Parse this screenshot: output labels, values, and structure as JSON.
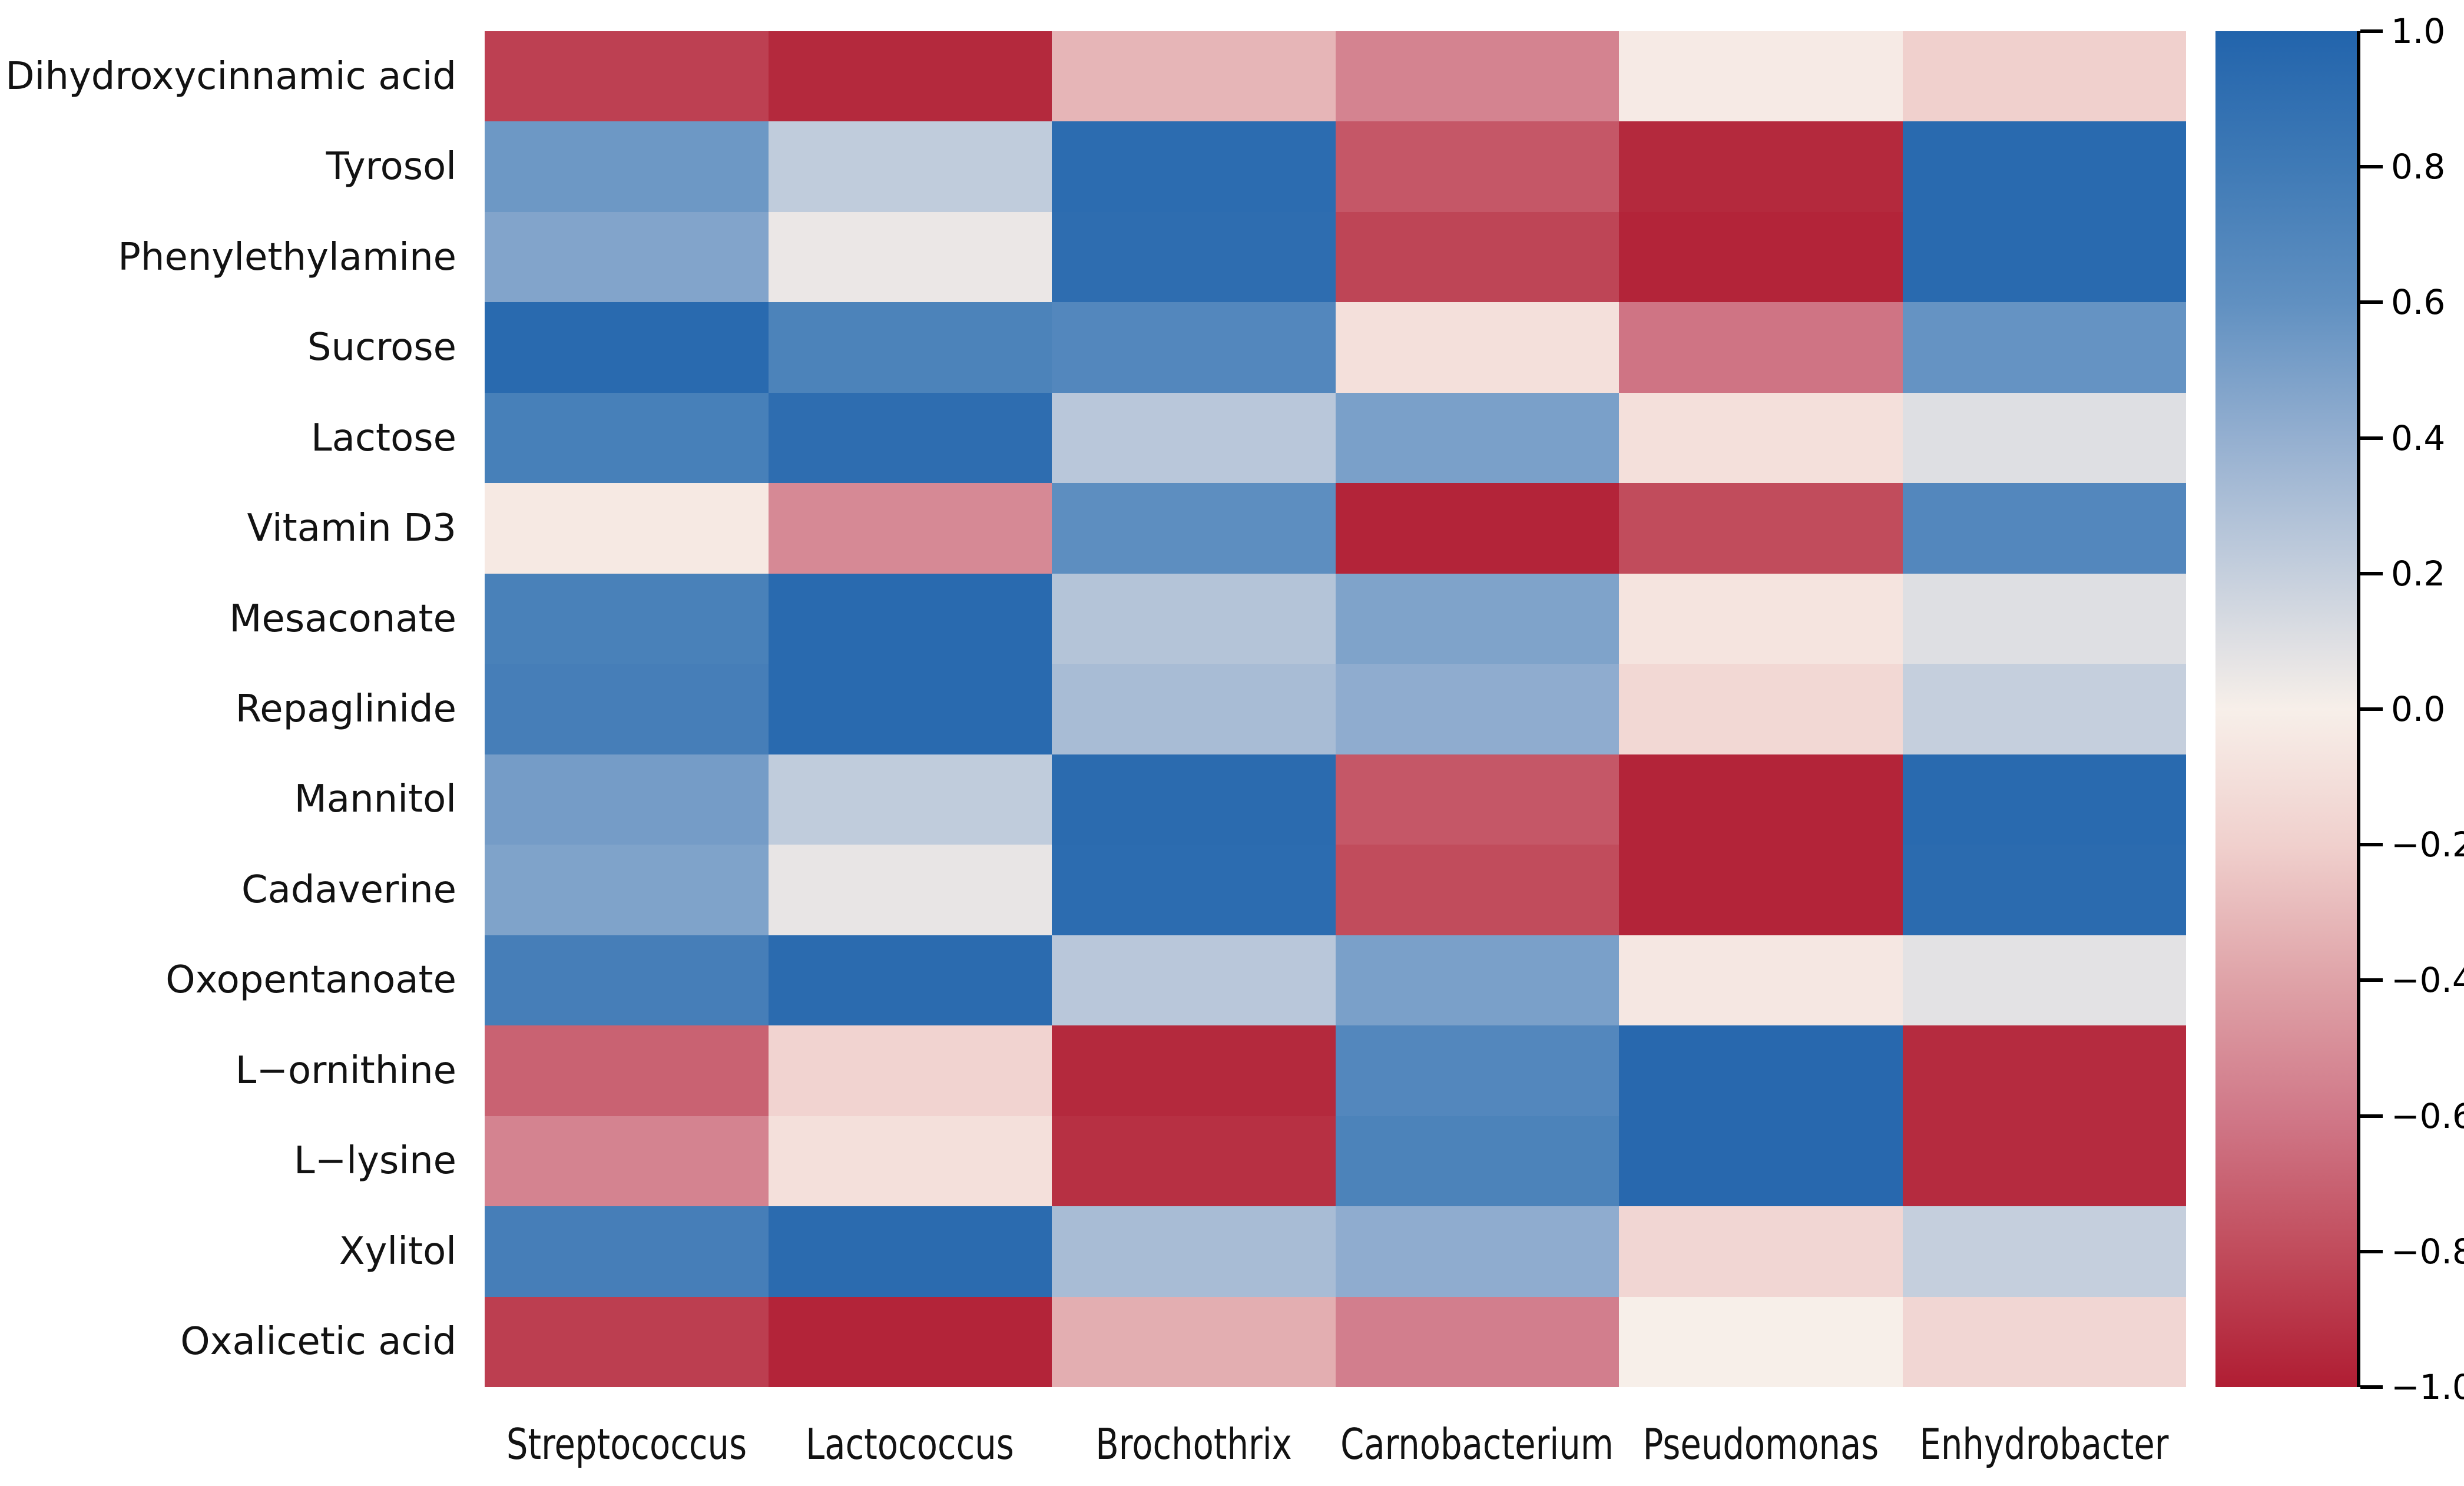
{
  "figure": {
    "background": "#ffffff",
    "text_color": "#121212"
  },
  "chart_data": {
    "type": "heatmap",
    "title": "",
    "xlabel": "",
    "ylabel": "",
    "grid": false,
    "legend_position": "right-colorbar",
    "columns": [
      "Streptococcus",
      "Lactococcus",
      "Brochothrix",
      "Carnobacterium",
      "Pseudomonas",
      "Enhydrobacter"
    ],
    "rows": [
      "Dihydroxycinnamic acid",
      "Tyrosol",
      "Phenylethylamine",
      "Sucrose",
      "Lactose",
      "Vitamin D3",
      "Mesaconate",
      "Repaglinide",
      "Mannitol",
      "Cadaverine",
      "Oxopentanoate",
      "L−ornithine",
      "L−lysine",
      "Xylitol",
      "Oxalicetic acid"
    ],
    "values": [
      [
        -0.85,
        -0.95,
        -0.32,
        -0.55,
        -0.03,
        -0.2
      ],
      [
        0.55,
        0.22,
        0.93,
        -0.75,
        -0.95,
        0.95
      ],
      [
        0.47,
        0.05,
        0.92,
        -0.83,
        -0.97,
        0.95
      ],
      [
        0.95,
        0.72,
        0.68,
        -0.1,
        -0.62,
        0.58
      ],
      [
        0.75,
        0.92,
        0.25,
        0.5,
        -0.1,
        0.1
      ],
      [
        -0.04,
        -0.52,
        0.62,
        -0.97,
        -0.8,
        0.68
      ],
      [
        0.74,
        0.95,
        0.27,
        0.48,
        -0.07,
        0.1
      ],
      [
        0.76,
        0.95,
        0.32,
        0.42,
        -0.15,
        0.2
      ],
      [
        0.52,
        0.22,
        0.94,
        -0.75,
        -0.97,
        0.95
      ],
      [
        0.48,
        0.06,
        0.93,
        -0.8,
        -0.97,
        0.94
      ],
      [
        0.76,
        0.94,
        0.25,
        0.5,
        -0.05,
        0.08
      ],
      [
        -0.7,
        -0.18,
        -0.95,
        0.68,
        0.96,
        -0.94
      ],
      [
        -0.55,
        -0.1,
        -0.92,
        0.72,
        0.96,
        -0.94
      ],
      [
        0.76,
        0.94,
        0.32,
        0.42,
        -0.16,
        0.2
      ],
      [
        -0.86,
        -0.97,
        -0.35,
        -0.57,
        0.0,
        -0.16
      ]
    ],
    "value_range": [
      -1.0,
      1.0
    ],
    "colorbar": {
      "tick_values": [
        1.0,
        0.8,
        0.6,
        0.4,
        0.2,
        0.0,
        -0.2,
        -0.4,
        -0.6,
        -0.8,
        -1.0
      ],
      "tick_labels": [
        "1.0",
        "0.8",
        "0.6",
        "0.4",
        "0.2",
        "0.0",
        "−0.2",
        "−0.4",
        "−0.6",
        "−0.8",
        "−1.0"
      ]
    },
    "colormap": {
      "stops": [
        {
          "v": 1.0,
          "color": "#2264ac"
        },
        {
          "v": 0.8,
          "color": "#3f7ab6"
        },
        {
          "v": 0.6,
          "color": "#6090c1"
        },
        {
          "v": 0.4,
          "color": "#94afd0"
        },
        {
          "v": 0.2,
          "color": "#c5cfdd"
        },
        {
          "v": 0.0,
          "color": "#f7efe9"
        },
        {
          "v": -0.2,
          "color": "#f0d0cd"
        },
        {
          "v": -0.4,
          "color": "#dfa3a8"
        },
        {
          "v": -0.6,
          "color": "#d07888"
        },
        {
          "v": -0.8,
          "color": "#c14c5c"
        },
        {
          "v": -1.0,
          "color": "#b01d33"
        }
      ]
    }
  }
}
